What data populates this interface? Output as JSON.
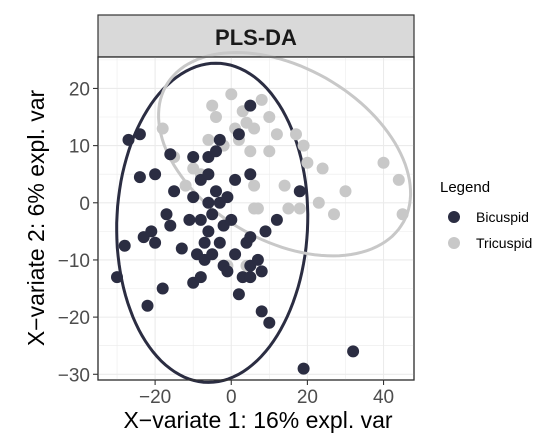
{
  "chart_data": {
    "type": "scatter",
    "title": "PLS-DA",
    "xlabel": "X−variate 1: 16% expl. var",
    "ylabel": "X−variate 2: 6% expl. var",
    "xlim": [
      -35,
      48
    ],
    "ylim": [
      -31,
      25.5
    ],
    "x_ticks": [
      -20,
      0,
      20,
      40
    ],
    "y_ticks": [
      -30,
      -20,
      -10,
      0,
      10,
      20
    ],
    "x_tick_labels": [
      "−20",
      "0",
      "20",
      "40"
    ],
    "y_tick_labels": [
      "−30",
      "−20",
      "−10",
      "0",
      "10",
      "20"
    ],
    "grid": true,
    "legend": {
      "title": "Legend",
      "position": "right"
    },
    "series": [
      {
        "name": "Bicuspid",
        "color": "#2b2d42",
        "ellipse": {
          "cx": -5,
          "cy": -3.5,
          "rx": 25,
          "ry": 28,
          "angle_deg": -10
        },
        "points": [
          [
            -30,
            -13
          ],
          [
            -28,
            -7.5
          ],
          [
            -27,
            11
          ],
          [
            -24,
            12
          ],
          [
            -23,
            -6
          ],
          [
            -22,
            -18
          ],
          [
            -24,
            4.5
          ],
          [
            -21,
            -5
          ],
          [
            -20,
            -7
          ],
          [
            -20,
            5
          ],
          [
            -18,
            -15
          ],
          [
            -17,
            -2
          ],
          [
            -16,
            -4
          ],
          [
            -16,
            8.5
          ],
          [
            -15,
            2
          ],
          [
            -13,
            -8
          ],
          [
            -11,
            -3
          ],
          [
            -10,
            1
          ],
          [
            -10,
            8
          ],
          [
            -10,
            -14
          ],
          [
            -9,
            -9
          ],
          [
            -8,
            -3
          ],
          [
            -8,
            4
          ],
          [
            -8,
            -13
          ],
          [
            -7,
            -10
          ],
          [
            -7,
            -7
          ],
          [
            -6,
            -5
          ],
          [
            -6,
            0
          ],
          [
            -6,
            8
          ],
          [
            -6,
            5
          ],
          [
            -5,
            -9
          ],
          [
            -5,
            -2
          ],
          [
            -4,
            2
          ],
          [
            -4,
            9
          ],
          [
            -3,
            0
          ],
          [
            -3,
            -7
          ],
          [
            -3,
            11
          ],
          [
            -2,
            -4
          ],
          [
            -2,
            -11
          ],
          [
            -1,
            1
          ],
          [
            -1,
            -12
          ],
          [
            0,
            -3
          ],
          [
            1,
            -9
          ],
          [
            1,
            4
          ],
          [
            2,
            12
          ],
          [
            2,
            -16
          ],
          [
            3,
            -13
          ],
          [
            4,
            -7
          ],
          [
            5,
            -6
          ],
          [
            5,
            -11
          ],
          [
            5,
            -13
          ],
          [
            5,
            5
          ],
          [
            5,
            17
          ],
          [
            7,
            -10
          ],
          [
            8,
            -12
          ],
          [
            8,
            -19
          ],
          [
            9,
            -5
          ],
          [
            10,
            -21
          ],
          [
            12,
            -3
          ],
          [
            18,
            2
          ],
          [
            19,
            -29
          ],
          [
            32,
            -26
          ]
        ]
      },
      {
        "name": "Tricuspid",
        "color": "#c8c8c8",
        "ellipse": {
          "cx": 14,
          "cy": 8.5,
          "rx": 34,
          "ry": 16,
          "angle_deg": -15
        },
        "points": [
          [
            -18,
            13
          ],
          [
            -15,
            8
          ],
          [
            -12,
            3
          ],
          [
            -10,
            6
          ],
          [
            -8,
            5
          ],
          [
            -6,
            11
          ],
          [
            -5,
            17
          ],
          [
            -4,
            15
          ],
          [
            -2,
            10
          ],
          [
            0,
            19
          ],
          [
            1,
            13
          ],
          [
            2,
            11
          ],
          [
            3,
            16
          ],
          [
            4,
            14
          ],
          [
            5,
            9
          ],
          [
            6,
            13
          ],
          [
            6,
            3
          ],
          [
            7,
            -1
          ],
          [
            8,
            18
          ],
          [
            10,
            15
          ],
          [
            10,
            9
          ],
          [
            12,
            12
          ],
          [
            14,
            3
          ],
          [
            15,
            -1
          ],
          [
            17,
            12
          ],
          [
            18,
            -1
          ],
          [
            19,
            10
          ],
          [
            20,
            7
          ],
          [
            23,
            0
          ],
          [
            24,
            6
          ],
          [
            27,
            -2
          ],
          [
            30,
            2
          ],
          [
            40,
            7
          ],
          [
            44,
            4
          ],
          [
            45,
            -2
          ],
          [
            6,
            -1
          ],
          [
            4,
            -11
          ],
          [
            -1,
            -11
          ]
        ]
      }
    ]
  }
}
